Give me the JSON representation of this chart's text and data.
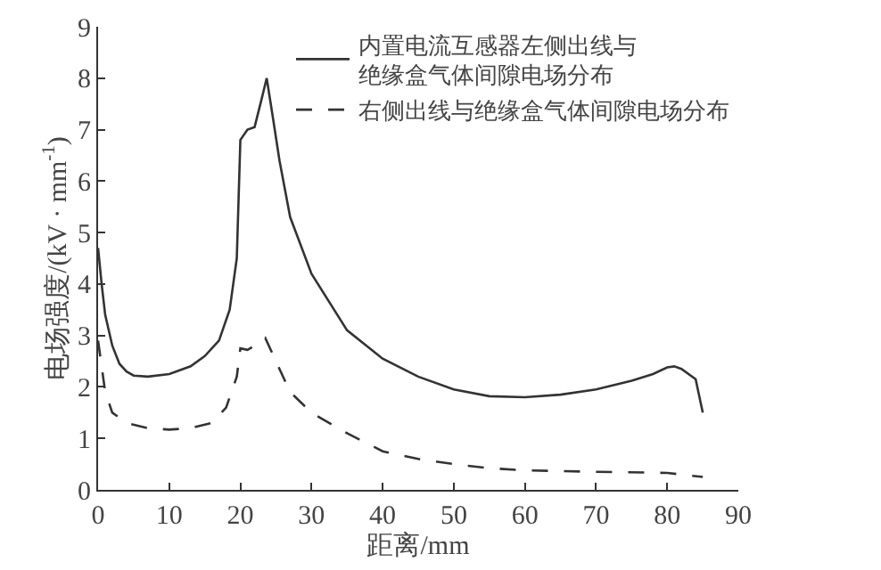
{
  "chart_data": {
    "type": "line",
    "xlabel": "距离/mm",
    "ylabel": "电场强度/(kV · mm$^{-1}$)",
    "xlim": [
      0,
      90
    ],
    "xticks": [
      0,
      10,
      20,
      30,
      40,
      50,
      60,
      70,
      80,
      90
    ],
    "ylim": [
      0,
      9
    ],
    "yticks": [
      0,
      1,
      2,
      3,
      4,
      5,
      6,
      7,
      8,
      9
    ],
    "legend": "top right",
    "marker": "none",
    "series": [
      {
        "name": "内置电流互感器左侧出线与绝缘盒气体间隙电场分布",
        "color": "#333333",
        "line_style": "solid",
        "x": [
          0,
          0.5,
          1,
          2,
          3,
          4,
          5,
          7,
          10,
          13,
          15,
          17,
          18.5,
          19.5,
          20,
          21,
          22,
          23,
          23.7,
          24.5,
          25.5,
          27,
          30,
          35,
          40,
          45,
          50,
          55,
          60,
          65,
          70,
          75,
          78,
          80,
          81,
          82,
          84,
          85
        ],
        "values": [
          4.7,
          4.0,
          3.4,
          2.8,
          2.45,
          2.3,
          2.22,
          2.2,
          2.25,
          2.4,
          2.6,
          2.9,
          3.5,
          4.5,
          6.8,
          7.0,
          7.05,
          7.6,
          8.0,
          7.3,
          6.4,
          5.3,
          4.2,
          3.1,
          2.55,
          2.2,
          1.95,
          1.82,
          1.8,
          1.85,
          1.95,
          2.12,
          2.25,
          2.38,
          2.4,
          2.35,
          2.15,
          1.5
        ]
      },
      {
        "name": "右侧出线与绝缘盒气体间隙电场分布",
        "color": "#333333",
        "line_style": "dashed",
        "x": [
          0,
          0.5,
          1,
          2,
          4,
          7,
          10,
          13,
          16,
          18,
          19.5,
          20,
          21,
          22,
          23.5,
          25,
          27,
          30,
          35,
          40,
          45,
          50,
          55,
          60,
          70,
          80,
          85
        ],
        "values": [
          2.9,
          2.4,
          1.9,
          1.5,
          1.3,
          1.2,
          1.17,
          1.2,
          1.3,
          1.6,
          2.2,
          2.75,
          2.72,
          2.8,
          2.95,
          2.5,
          1.9,
          1.5,
          1.1,
          0.75,
          0.6,
          0.5,
          0.42,
          0.38,
          0.35,
          0.33,
          0.25
        ]
      }
    ]
  }
}
